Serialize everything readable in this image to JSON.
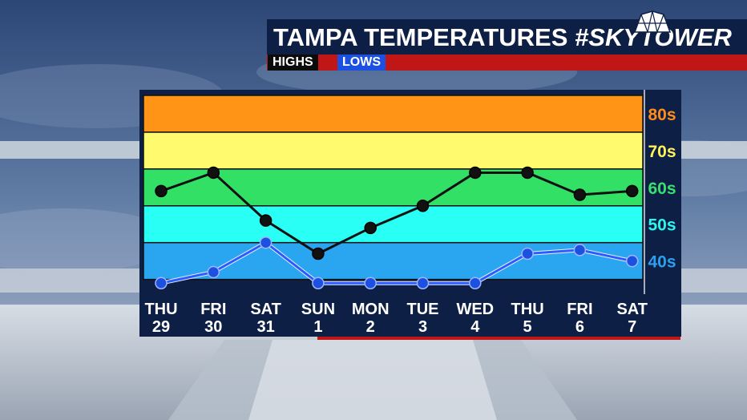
{
  "header": {
    "title": "TAMPA TEMPERATURES",
    "hashtag": "#SKYTOWER"
  },
  "legend": {
    "highs": "HIGHS",
    "lows": "LOWS"
  },
  "colors": {
    "panel": "#0d1f45",
    "accent_red": "#c01616",
    "highs_line": "#111111",
    "lows_line": "#1c50e0",
    "band_80s": "#ff9416",
    "band_70s": "#fffa6e",
    "band_60s": "#33e066",
    "band_50s": "#29fff4",
    "band_40s": "#2aa5f0"
  },
  "chart_data": {
    "type": "line",
    "categories": [
      "THU 29",
      "FRI 30",
      "SAT 31",
      "SUN 1",
      "MON 2",
      "TUE 3",
      "WED 4",
      "THU 5",
      "FRI 6",
      "SAT 7"
    ],
    "days": [
      {
        "dow": "THU",
        "date": "29"
      },
      {
        "dow": "FRI",
        "date": "30"
      },
      {
        "dow": "SAT",
        "date": "31"
      },
      {
        "dow": "SUN",
        "date": "1"
      },
      {
        "dow": "MON",
        "date": "2"
      },
      {
        "dow": "TUE",
        "date": "3"
      },
      {
        "dow": "WED",
        "date": "4"
      },
      {
        "dow": "THU",
        "date": "5"
      },
      {
        "dow": "FRI",
        "date": "6"
      },
      {
        "dow": "SAT",
        "date": "7"
      }
    ],
    "series": [
      {
        "name": "HIGHS",
        "values": [
          64,
          69,
          56,
          47,
          54,
          60,
          69,
          69,
          63,
          64
        ]
      },
      {
        "name": "LOWS",
        "values": [
          39,
          42,
          50,
          39,
          39,
          39,
          39,
          47,
          48,
          45
        ]
      }
    ],
    "bands": [
      {
        "label": "80s",
        "from": 80,
        "to": 90,
        "color": "#ff9416",
        "label_color": "#ff8c1a"
      },
      {
        "label": "70s",
        "from": 70,
        "to": 80,
        "color": "#fffa6e",
        "label_color": "#fff35a"
      },
      {
        "label": "60s",
        "from": 60,
        "to": 70,
        "color": "#33e066",
        "label_color": "#38e070"
      },
      {
        "label": "50s",
        "from": 50,
        "to": 60,
        "color": "#29fff4",
        "label_color": "#2cf5ee"
      },
      {
        "label": "40s",
        "from": 40,
        "to": 50,
        "color": "#2aa5f0",
        "label_color": "#2aa0f0"
      }
    ],
    "ylim": [
      36,
      90
    ],
    "grid": true,
    "legend_position": "top"
  }
}
